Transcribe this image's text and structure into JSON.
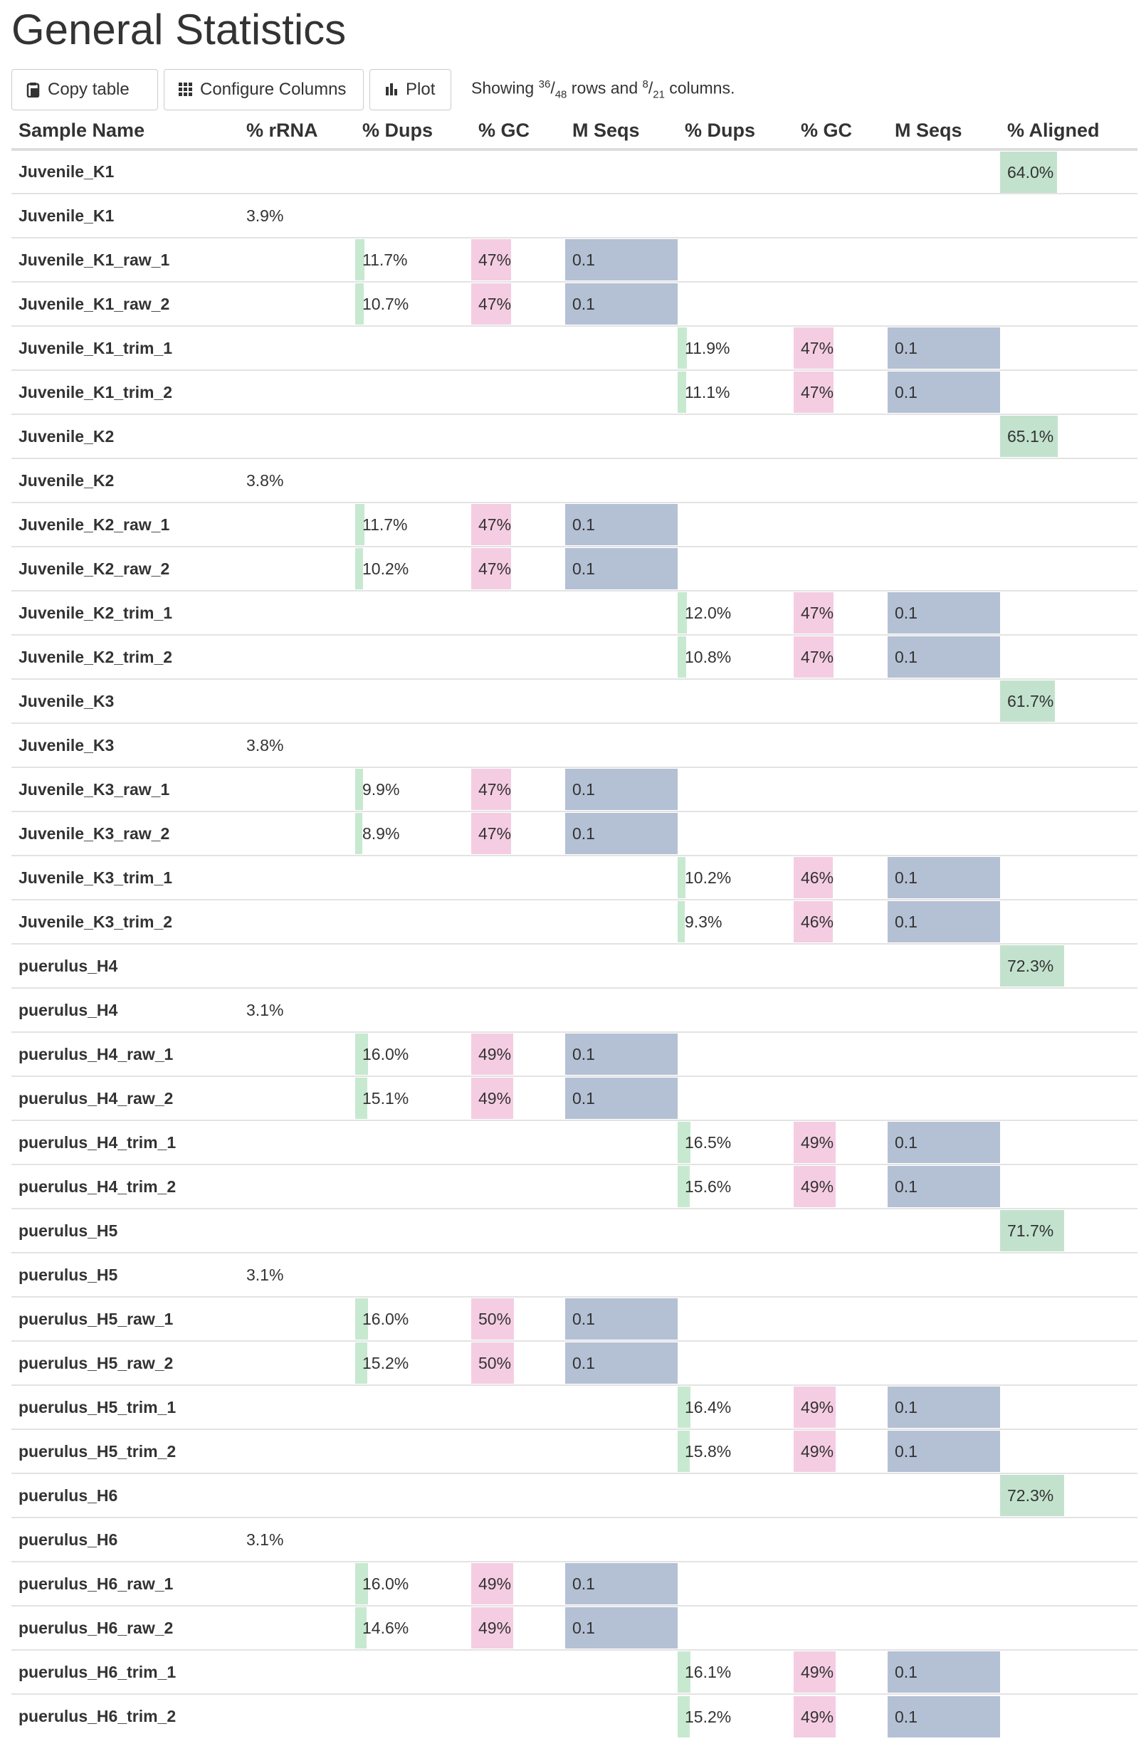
{
  "title": "General Statistics",
  "toolbar": {
    "copy_label": "Copy table",
    "configure_label": "Configure Columns",
    "plot_label": "Plot",
    "showing_prefix": "Showing ",
    "rows_shown": "36",
    "rows_total": "48",
    "rows_word": " rows and ",
    "cols_shown": "8",
    "cols_total": "21",
    "cols_word": " columns."
  },
  "colors": {
    "dups": "#c7e9d0",
    "gc": "#f5cde3",
    "mseqs": "#b4c0d4",
    "aligned": "#c2e2cd"
  },
  "columns": [
    "Sample Name",
    "% rRNA",
    "% Dups",
    "% GC",
    "M Seqs",
    "% Dups",
    "% GC",
    "M Seqs",
    "% Aligned"
  ],
  "rows": [
    {
      "name": "Juvenile_K1",
      "aligned": "64.0%",
      "aligned_pct": 64.0
    },
    {
      "name": "Juvenile_K1",
      "rrna": "3.9%"
    },
    {
      "name": "Juvenile_K1_raw_1",
      "dups1": "11.7%",
      "dups1_pct": 11.7,
      "gc1": "47%",
      "gc1_pct": 47,
      "mseqs1": "0.1"
    },
    {
      "name": "Juvenile_K1_raw_2",
      "dups1": "10.7%",
      "dups1_pct": 10.7,
      "gc1": "47%",
      "gc1_pct": 47,
      "mseqs1": "0.1"
    },
    {
      "name": "Juvenile_K1_trim_1",
      "dups2": "11.9%",
      "dups2_pct": 11.9,
      "gc2": "47%",
      "gc2_pct": 47,
      "mseqs2": "0.1"
    },
    {
      "name": "Juvenile_K1_trim_2",
      "dups2": "11.1%",
      "dups2_pct": 11.1,
      "gc2": "47%",
      "gc2_pct": 47,
      "mseqs2": "0.1"
    },
    {
      "name": "Juvenile_K2",
      "aligned": "65.1%",
      "aligned_pct": 65.1
    },
    {
      "name": "Juvenile_K2",
      "rrna": "3.8%"
    },
    {
      "name": "Juvenile_K2_raw_1",
      "dups1": "11.7%",
      "dups1_pct": 11.7,
      "gc1": "47%",
      "gc1_pct": 47,
      "mseqs1": "0.1"
    },
    {
      "name": "Juvenile_K2_raw_2",
      "dups1": "10.2%",
      "dups1_pct": 10.2,
      "gc1": "47%",
      "gc1_pct": 47,
      "mseqs1": "0.1"
    },
    {
      "name": "Juvenile_K2_trim_1",
      "dups2": "12.0%",
      "dups2_pct": 12.0,
      "gc2": "47%",
      "gc2_pct": 47,
      "mseqs2": "0.1"
    },
    {
      "name": "Juvenile_K2_trim_2",
      "dups2": "10.8%",
      "dups2_pct": 10.8,
      "gc2": "47%",
      "gc2_pct": 47,
      "mseqs2": "0.1"
    },
    {
      "name": "Juvenile_K3",
      "aligned": "61.7%",
      "aligned_pct": 61.7
    },
    {
      "name": "Juvenile_K3",
      "rrna": "3.8%"
    },
    {
      "name": "Juvenile_K3_raw_1",
      "dups1": "9.9%",
      "dups1_pct": 9.9,
      "gc1": "47%",
      "gc1_pct": 47,
      "mseqs1": "0.1"
    },
    {
      "name": "Juvenile_K3_raw_2",
      "dups1": "8.9%",
      "dups1_pct": 8.9,
      "gc1": "47%",
      "gc1_pct": 47,
      "mseqs1": "0.1"
    },
    {
      "name": "Juvenile_K3_trim_1",
      "dups2": "10.2%",
      "dups2_pct": 10.2,
      "gc2": "46%",
      "gc2_pct": 46,
      "mseqs2": "0.1"
    },
    {
      "name": "Juvenile_K3_trim_2",
      "dups2": "9.3%",
      "dups2_pct": 9.3,
      "gc2": "46%",
      "gc2_pct": 46,
      "mseqs2": "0.1"
    },
    {
      "name": "puerulus_H4",
      "aligned": "72.3%",
      "aligned_pct": 72.3
    },
    {
      "name": "puerulus_H4",
      "rrna": "3.1%"
    },
    {
      "name": "puerulus_H4_raw_1",
      "dups1": "16.0%",
      "dups1_pct": 16.0,
      "gc1": "49%",
      "gc1_pct": 49,
      "mseqs1": "0.1"
    },
    {
      "name": "puerulus_H4_raw_2",
      "dups1": "15.1%",
      "dups1_pct": 15.1,
      "gc1": "49%",
      "gc1_pct": 49,
      "mseqs1": "0.1"
    },
    {
      "name": "puerulus_H4_trim_1",
      "dups2": "16.5%",
      "dups2_pct": 16.5,
      "gc2": "49%",
      "gc2_pct": 49,
      "mseqs2": "0.1"
    },
    {
      "name": "puerulus_H4_trim_2",
      "dups2": "15.6%",
      "dups2_pct": 15.6,
      "gc2": "49%",
      "gc2_pct": 49,
      "mseqs2": "0.1"
    },
    {
      "name": "puerulus_H5",
      "aligned": "71.7%",
      "aligned_pct": 71.7
    },
    {
      "name": "puerulus_H5",
      "rrna": "3.1%"
    },
    {
      "name": "puerulus_H5_raw_1",
      "dups1": "16.0%",
      "dups1_pct": 16.0,
      "gc1": "50%",
      "gc1_pct": 50,
      "mseqs1": "0.1"
    },
    {
      "name": "puerulus_H5_raw_2",
      "dups1": "15.2%",
      "dups1_pct": 15.2,
      "gc1": "50%",
      "gc1_pct": 50,
      "mseqs1": "0.1"
    },
    {
      "name": "puerulus_H5_trim_1",
      "dups2": "16.4%",
      "dups2_pct": 16.4,
      "gc2": "49%",
      "gc2_pct": 49,
      "mseqs2": "0.1"
    },
    {
      "name": "puerulus_H5_trim_2",
      "dups2": "15.8%",
      "dups2_pct": 15.8,
      "gc2": "49%",
      "gc2_pct": 49,
      "mseqs2": "0.1"
    },
    {
      "name": "puerulus_H6",
      "aligned": "72.3%",
      "aligned_pct": 72.3
    },
    {
      "name": "puerulus_H6",
      "rrna": "3.1%"
    },
    {
      "name": "puerulus_H6_raw_1",
      "dups1": "16.0%",
      "dups1_pct": 16.0,
      "gc1": "49%",
      "gc1_pct": 49,
      "mseqs1": "0.1"
    },
    {
      "name": "puerulus_H6_raw_2",
      "dups1": "14.6%",
      "dups1_pct": 14.6,
      "gc1": "49%",
      "gc1_pct": 49,
      "mseqs1": "0.1"
    },
    {
      "name": "puerulus_H6_trim_1",
      "dups2": "16.1%",
      "dups2_pct": 16.1,
      "gc2": "49%",
      "gc2_pct": 49,
      "mseqs2": "0.1"
    },
    {
      "name": "puerulus_H6_trim_2",
      "dups2": "15.2%",
      "dups2_pct": 15.2,
      "gc2": "49%",
      "gc2_pct": 49,
      "mseqs2": "0.1"
    }
  ]
}
